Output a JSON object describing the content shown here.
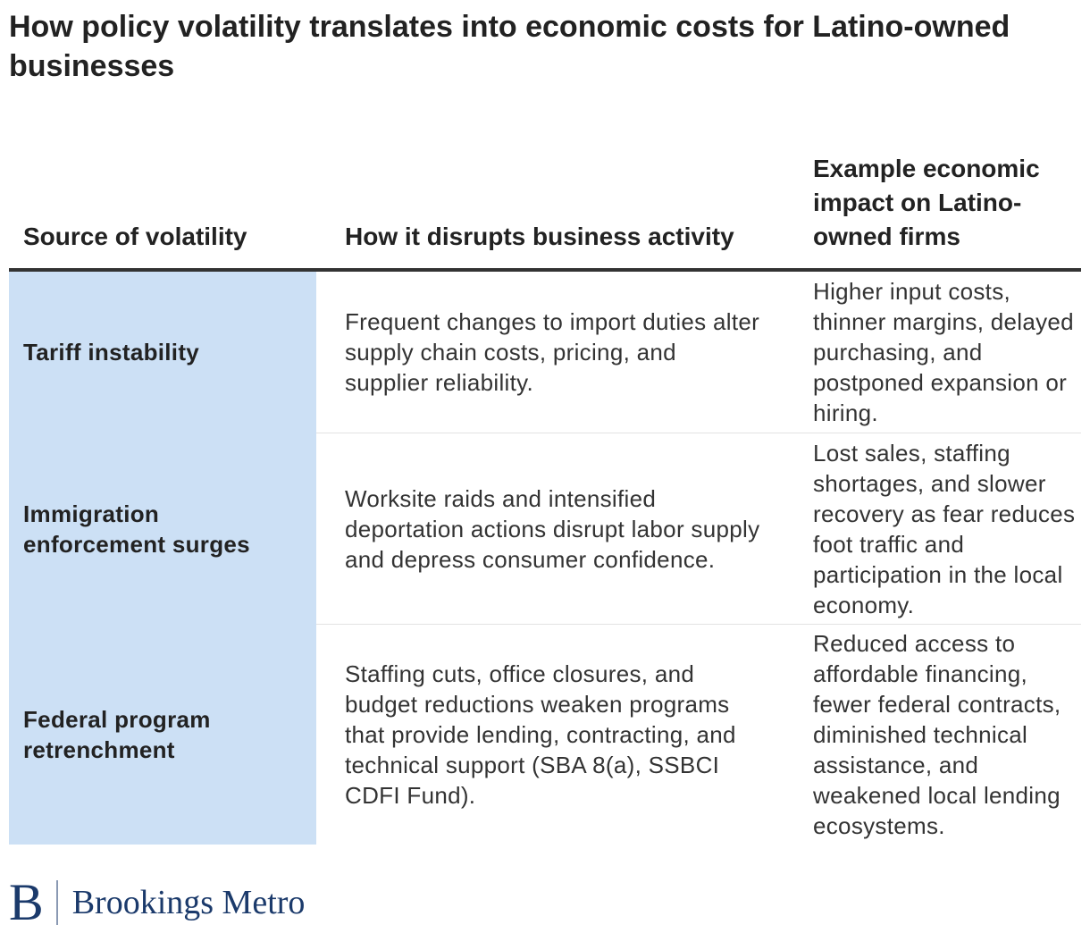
{
  "title": "How policy volatility translates into economic costs for Latino-owned businesses",
  "chart_data": {
    "type": "table",
    "columns": [
      "Source of volatility",
      "How it disrupts business activity",
      "Example economic impact on Latino-owned firms"
    ],
    "rows": [
      {
        "source": "Tariff instability",
        "disruption": "Frequent changes to import duties alter supply chain costs, pricing, and supplier reliability.",
        "impact": "Higher input costs, thinner margins, delayed purchasing, and postponed expansion or hiring."
      },
      {
        "source": "Immigration enforcement surges",
        "disruption": "Worksite raids and intensified deportation actions disrupt labor supply and depress consumer confidence.",
        "impact": "Lost sales, staffing shortages, and slower recovery as fear reduces foot traffic and participation in the local economy."
      },
      {
        "source": "Federal program retrenchment",
        "disruption": "Staffing cuts, office closures, and budget reductions weaken programs that provide lending, contracting, and technical support (SBA 8(a), SSBCI CDFI Fund).",
        "impact": "Reduced access to affordable financing, fewer federal contracts, diminished technical assistance, and weakened local lending ecosystems."
      }
    ],
    "highlight_color": "#cce0f5"
  },
  "branding": {
    "logo_mark": "B",
    "logo_text": "Brookings Metro",
    "color": "#1b3a6b"
  }
}
